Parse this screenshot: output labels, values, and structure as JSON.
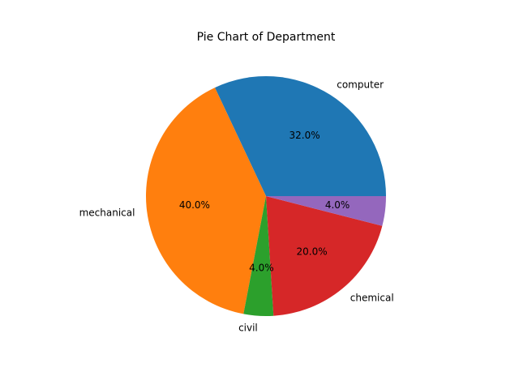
{
  "chart_data": {
    "type": "pie",
    "title": "Pie Chart of Department",
    "slices": [
      {
        "label": "computer",
        "value": 32.0,
        "pct_label": "32.0%",
        "color": "#1f77b4"
      },
      {
        "label": "mechanical",
        "value": 40.0,
        "pct_label": "40.0%",
        "color": "#ff7f0e"
      },
      {
        "label": "civil",
        "value": 4.0,
        "pct_label": "4.0%",
        "color": "#2ca02c"
      },
      {
        "label": "chemical",
        "value": 20.0,
        "pct_label": "20.0%",
        "color": "#d62728"
      },
      {
        "label": "",
        "value": 4.0,
        "pct_label": "4.0%",
        "color": "#9467bd"
      }
    ],
    "start_angle_deg": 0,
    "direction": "counterclockwise"
  }
}
